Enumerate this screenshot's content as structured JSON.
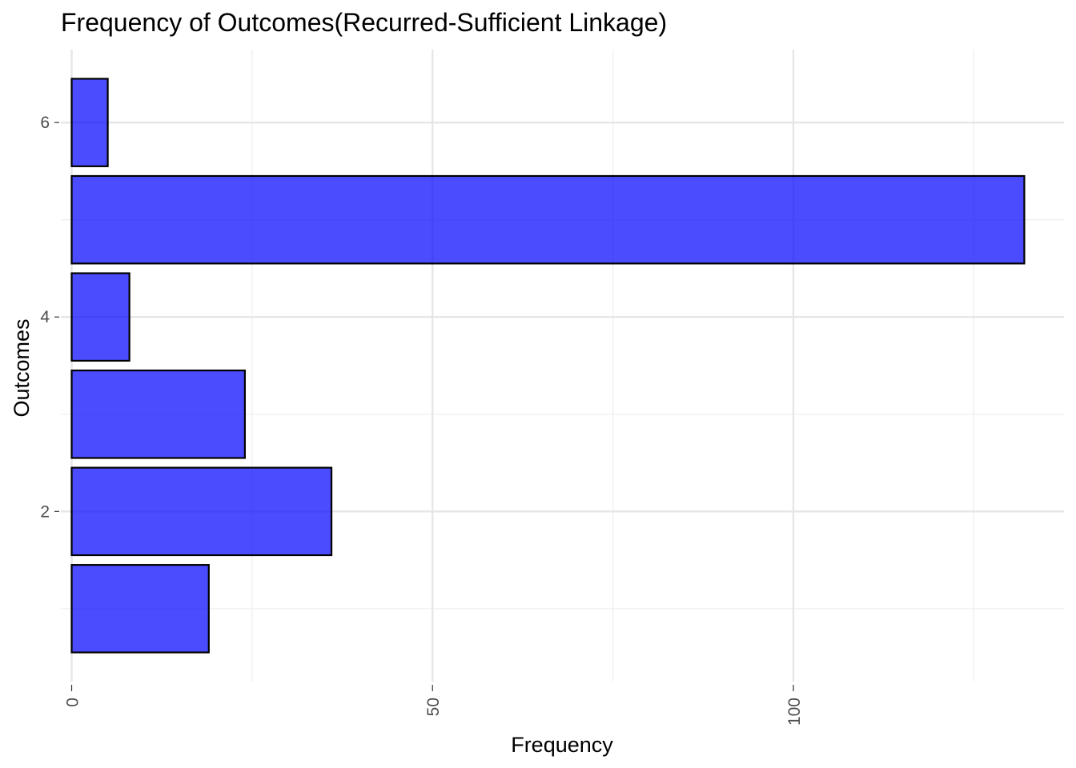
{
  "chart_data": {
    "type": "bar",
    "orientation": "horizontal",
    "title": "Frequency of Outcomes(Recurred-Sufficient Linkage)",
    "xlabel": "Frequency",
    "ylabel": "Outcomes",
    "categories": [
      1,
      2,
      3,
      4,
      5,
      6
    ],
    "values": [
      19,
      36,
      24,
      8,
      132,
      5
    ],
    "xlim": [
      -1.5,
      137.5
    ],
    "ylim": [
      0.25,
      6.75
    ],
    "x_ticks": [
      0,
      50,
      100
    ],
    "y_ticks": [
      2,
      4,
      6
    ],
    "x_tick_rotation": -90,
    "grid": true,
    "legend": "none",
    "colors": {
      "bar_fill": "#0000FF",
      "bar_fill_opacity": 0.7,
      "bar_stroke": "#000000"
    }
  }
}
